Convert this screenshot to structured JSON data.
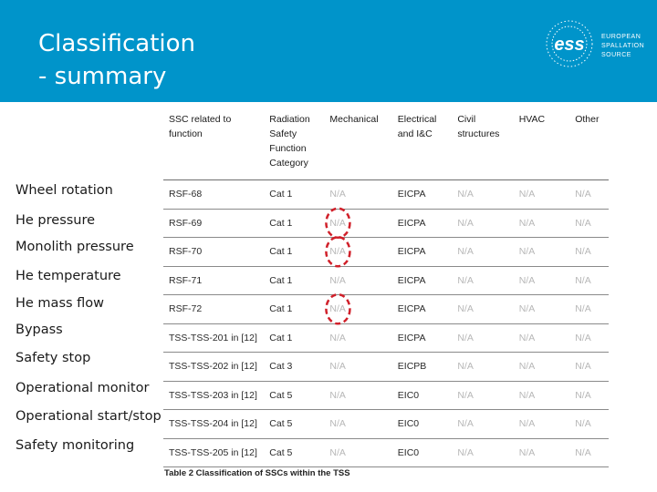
{
  "header": {
    "title_line1": "Classification",
    "title_line2": "- summary",
    "logo": {
      "mark": "ess",
      "line1": "EUROPEAN",
      "line2": "SPALLATION",
      "line3": "SOURCE"
    }
  },
  "row_labels": [
    "Wheel rotation",
    "He pressure",
    "Monolith pressure",
    "He temperature",
    "He mass flow",
    "Bypass",
    "Safety stop",
    "Operational monitor",
    "Operational start/stop",
    "Safety monitoring"
  ],
  "table": {
    "headers": [
      "SSC related to function",
      "Radiation Safety Function Category",
      "Mechanical",
      "Electrical and I&C",
      "Civil structures",
      "HVAC",
      "Other"
    ],
    "rows": [
      [
        "RSF-68",
        "Cat 1",
        "N/A",
        "EICPA",
        "N/A",
        "N/A",
        "N/A"
      ],
      [
        "RSF-69",
        "Cat 1",
        "N/A",
        "EICPA",
        "N/A",
        "N/A",
        "N/A"
      ],
      [
        "RSF-70",
        "Cat 1",
        "N/A",
        "EICPA",
        "N/A",
        "N/A",
        "N/A"
      ],
      [
        "RSF-71",
        "Cat 1",
        "N/A",
        "EICPA",
        "N/A",
        "N/A",
        "N/A"
      ],
      [
        "RSF-72",
        "Cat 1",
        "N/A",
        "EICPA",
        "N/A",
        "N/A",
        "N/A"
      ],
      [
        "TSS-TSS-201 in [12]",
        "Cat 1",
        "N/A",
        "EICPA",
        "N/A",
        "N/A",
        "N/A"
      ],
      [
        "TSS-TSS-202 in [12]",
        "Cat 3",
        "N/A",
        "EICPB",
        "N/A",
        "N/A",
        "N/A"
      ],
      [
        "TSS-TSS-203 in [12]",
        "Cat 5",
        "N/A",
        "EIC0",
        "N/A",
        "N/A",
        "N/A"
      ],
      [
        "TSS-TSS-204 in [12]",
        "Cat 5",
        "N/A",
        "EIC0",
        "N/A",
        "N/A",
        "N/A"
      ],
      [
        "TSS-TSS-205 in [12]",
        "Cat 5",
        "N/A",
        "EIC0",
        "N/A",
        "N/A",
        "N/A"
      ]
    ],
    "caption": "Table 2 Classification of SSCs within the TSS"
  },
  "highlights": {
    "rows": [
      1,
      2,
      4
    ],
    "column": 2,
    "color": "#D0202A"
  },
  "colors": {
    "header_bg": "#0094CA",
    "na_text": "#b7b7b7"
  }
}
